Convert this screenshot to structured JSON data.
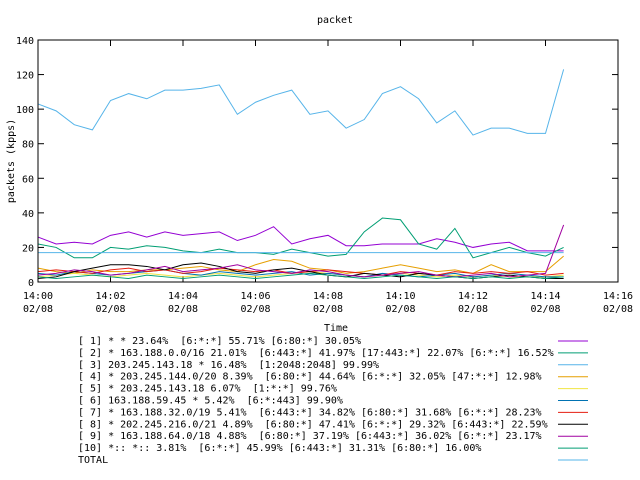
{
  "chart_data": {
    "type": "line",
    "title": "packet",
    "xlabel": "Time",
    "ylabel": "packets (kpps)",
    "x": [
      0,
      0.5,
      1,
      1.5,
      2,
      2.5,
      3,
      3.5,
      4,
      4.5,
      5,
      5.5,
      6,
      6.5,
      7,
      7.5,
      8,
      8.5,
      9,
      9.5,
      10,
      10.5,
      11,
      11.5,
      12,
      12.5,
      13,
      13.5,
      14,
      14.5
    ],
    "xlim": [
      0,
      16
    ],
    "xticks": [
      {
        "value": 0,
        "label": "14:00\n02/08"
      },
      {
        "value": 2,
        "label": "14:02\n02/08"
      },
      {
        "value": 4,
        "label": "14:04\n02/08"
      },
      {
        "value": 6,
        "label": "14:06\n02/08"
      },
      {
        "value": 8,
        "label": "14:08\n02/08"
      },
      {
        "value": 10,
        "label": "14:10\n02/08"
      },
      {
        "value": 12,
        "label": "14:12\n02/08"
      },
      {
        "value": 14,
        "label": "14:14\n02/08"
      },
      {
        "value": 16,
        "label": "14:16\n02/08"
      }
    ],
    "ylim": [
      0,
      140
    ],
    "yticks": [
      0,
      20,
      40,
      60,
      80,
      100,
      120,
      140
    ],
    "series": [
      {
        "name": "[ 1] * * 23.64%  [6:*:*] 55.71% [6:80:*] 30.05%",
        "color": "#9400d3",
        "values": [
          26,
          22,
          23,
          22,
          27,
          29,
          26,
          29,
          27,
          28,
          29,
          24,
          27,
          32,
          22,
          25,
          27,
          21,
          21,
          22,
          22,
          22,
          25,
          23,
          20,
          22,
          23,
          18,
          18,
          18
        ]
      },
      {
        "name": "[ 2] * 163.188.0.0/16 21.01%  [6:443:*] 41.97% [17:443:*] 22.07% [6:*:*] 16.52%",
        "color": "#009e73",
        "values": [
          22,
          20,
          14,
          14,
          20,
          19,
          21,
          20,
          18,
          17,
          19,
          17,
          17,
          16,
          19,
          17,
          15,
          16,
          29,
          37,
          36,
          22,
          19,
          31,
          14,
          17,
          20,
          17,
          15,
          20
        ]
      },
      {
        "name": "[ 3] 203.245.143.18 * 16.48%  [1:2048:2048] 99.99%",
        "color": "#56b4e9",
        "values": [
          17,
          17,
          17,
          17,
          17,
          17,
          17,
          17,
          17,
          17,
          17,
          17,
          17,
          17,
          17,
          17,
          17,
          17,
          17,
          17,
          17,
          17,
          17,
          17,
          17,
          17,
          17,
          17,
          17,
          17
        ]
      },
      {
        "name": "[ 4] * 203.245.144.0/20 8.39%  [6:80:*] 44.64% [6:*:*] 32.05% [47:*:*] 12.98%",
        "color": "#e69f00",
        "values": [
          8,
          6,
          5,
          7,
          6,
          6,
          7,
          7,
          8,
          9,
          7,
          6,
          10,
          13,
          12,
          8,
          7,
          5,
          6,
          8,
          10,
          8,
          6,
          7,
          5,
          10,
          6,
          6,
          6,
          15
        ]
      },
      {
        "name": "[ 5] * 203.245.143.18 6.07%  [1:*:*] 99.76%",
        "color": "#f0e442",
        "values": [
          3,
          4,
          5,
          4,
          3,
          4,
          5,
          4,
          3,
          4,
          5,
          4,
          3,
          4,
          5,
          6,
          5,
          4,
          3,
          4,
          5,
          4,
          3,
          4,
          3,
          4,
          3,
          3,
          3,
          4
        ]
      },
      {
        "name": "[ 6] 163.188.59.45 * 5.42%  [6:*:443] 99.90%",
        "color": "#0072b2",
        "values": [
          5,
          4,
          6,
          5,
          4,
          5,
          6,
          7,
          5,
          4,
          6,
          5,
          4,
          5,
          6,
          4,
          5,
          4,
          3,
          5,
          4,
          3,
          4,
          5,
          3,
          4,
          5,
          4,
          3,
          3
        ]
      },
      {
        "name": "[ 7] * 163.188.32.0/19 5.41%  [6:443:*] 34.82% [6:80:*] 31.68% [6:*:*] 28.23%",
        "color": "#e51e10",
        "values": [
          6,
          7,
          6,
          5,
          7,
          8,
          6,
          7,
          5,
          6,
          8,
          7,
          6,
          7,
          5,
          6,
          7,
          6,
          5,
          4,
          6,
          5,
          4,
          6,
          5,
          6,
          5,
          6,
          4,
          5
        ]
      },
      {
        "name": "[ 8] * 202.245.216.0/21 4.89%  [6:80:*] 47.41% [6:*:*] 29.32% [6:443:*] 22.59%",
        "color": "#000000",
        "values": [
          2,
          3,
          6,
          8,
          10,
          10,
          9,
          7,
          10,
          11,
          9,
          6,
          5,
          7,
          8,
          6,
          4,
          3,
          5,
          4,
          3,
          5,
          4,
          3,
          2,
          3,
          4,
          3,
          2,
          2
        ]
      },
      {
        "name": "[ 9] * 163.188.64.0/18 4.88%  [6:80:*] 37.19% [6:443:*] 36.02% [6:*:*] 23.17%",
        "color": "#a000a0",
        "values": [
          4,
          5,
          7,
          6,
          4,
          5,
          7,
          9,
          6,
          7,
          8,
          10,
          7,
          6,
          5,
          7,
          6,
          4,
          3,
          4,
          5,
          6,
          4,
          3,
          4,
          5,
          3,
          4,
          5,
          33
        ]
      },
      {
        "name": "[10] *:: *:: 3.81%  [6:*:*] 45.99% [6:443:*] 31.31% [6:80:*] 16.00%",
        "color": "#009e73",
        "values": [
          3,
          2,
          3,
          4,
          3,
          2,
          4,
          3,
          2,
          3,
          4,
          3,
          2,
          3,
          4,
          5,
          4,
          3,
          2,
          3,
          4,
          3,
          2,
          3,
          2,
          3,
          2,
          3,
          2,
          3
        ]
      },
      {
        "name": "TOTAL",
        "color": "#56b4e9",
        "values": [
          103,
          99,
          91,
          88,
          105,
          109,
          106,
          111,
          111,
          112,
          114,
          97,
          104,
          108,
          111,
          97,
          99,
          89,
          94,
          109,
          113,
          106,
          92,
          99,
          85,
          89,
          89,
          86,
          86,
          123
        ]
      }
    ]
  }
}
